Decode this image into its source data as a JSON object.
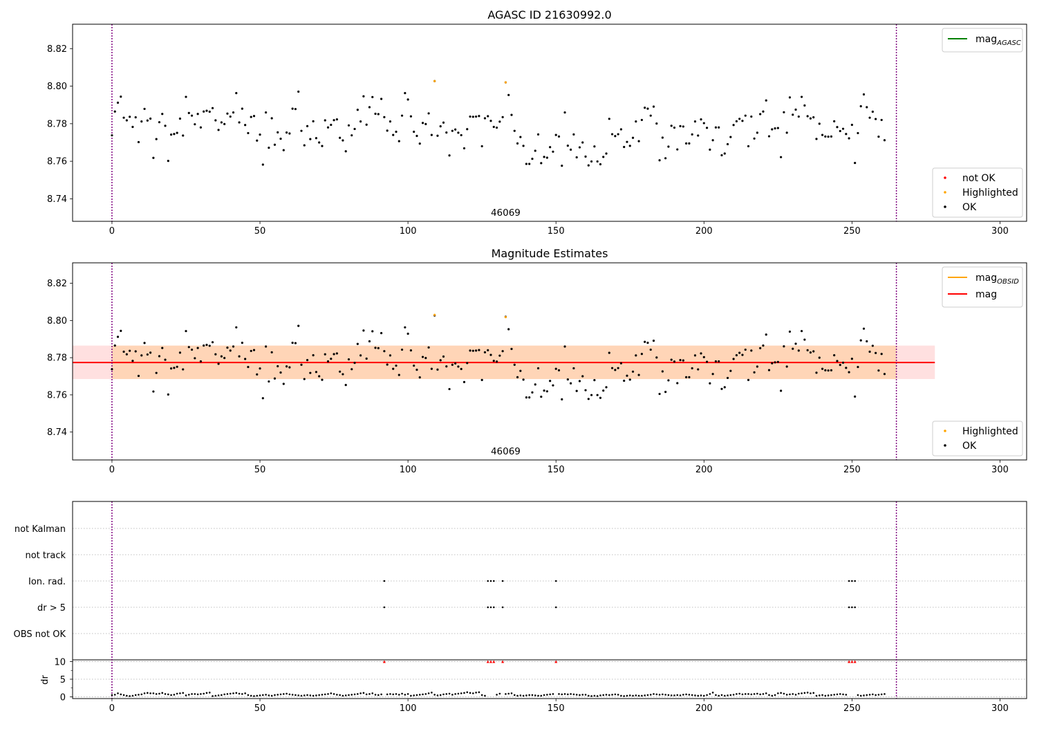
{
  "chart_data": [
    {
      "type": "scatter",
      "title": "AGASC ID 21630992.0",
      "obs_label": "46069",
      "xlim": [
        -13.3,
        309.0
      ],
      "ylim": [
        8.728,
        8.833
      ],
      "xticks": [
        0,
        50,
        100,
        150,
        200,
        250,
        300
      ],
      "yticks": [
        8.74,
        8.76,
        8.78,
        8.8,
        8.82
      ],
      "ytick_labels": [
        "8.74",
        "8.76",
        "8.78",
        "8.80",
        "8.82"
      ],
      "vlines": [
        0,
        265
      ],
      "legend_upper": [
        {
          "label": "mag",
          "sub": "AGASC",
          "kind": "line",
          "color": "#008000"
        }
      ],
      "legend_lower": [
        {
          "label": "not OK",
          "kind": "dot",
          "color": "#ff0000"
        },
        {
          "label": "Highlighted",
          "kind": "dot",
          "color": "#ffa500"
        },
        {
          "label": "OK",
          "kind": "dot",
          "color": "#000000"
        }
      ],
      "highlighted": [
        [
          109,
          8.8027
        ],
        [
          133,
          8.802
        ]
      ]
    },
    {
      "type": "scatter",
      "title": "Magnitude Estimates",
      "obs_label": "46069",
      "xlim": [
        -13.3,
        309.0
      ],
      "ylim": [
        8.725,
        8.831
      ],
      "xticks": [
        0,
        50,
        100,
        150,
        200,
        250,
        300
      ],
      "yticks": [
        8.74,
        8.76,
        8.78,
        8.8,
        8.82
      ],
      "ytick_labels": [
        "8.74",
        "8.76",
        "8.78",
        "8.80",
        "8.82"
      ],
      "vlines": [
        0,
        265
      ],
      "mag": 8.7774,
      "mag_band": [
        8.7685,
        8.7865
      ],
      "band_x": [
        -13.3,
        278
      ],
      "legend_upper": [
        {
          "label": "mag",
          "sub": "OBSID",
          "kind": "line",
          "color": "#ffa500"
        },
        {
          "label": "mag",
          "kind": "line",
          "color": "#ff0000"
        }
      ],
      "legend_lower": [
        {
          "label": "Highlighted",
          "kind": "dot",
          "color": "#ffa500"
        },
        {
          "label": "OK",
          "kind": "dot",
          "color": "#000000"
        }
      ],
      "highlighted": [
        [
          109,
          8.803
        ],
        [
          133,
          8.8018
        ]
      ]
    },
    {
      "type": "scatter",
      "title": "",
      "xlim": [
        -13.3,
        309.0
      ],
      "xticks": [
        0,
        50,
        100,
        150,
        200,
        250,
        300
      ],
      "vlines": [
        0,
        265
      ],
      "flag_rows": [
        "not Kalman",
        "not track",
        "Ion. rad.",
        "dr > 5",
        "OBS not OK"
      ],
      "flag_points": [
        92,
        127,
        128,
        129,
        132,
        150,
        249,
        250,
        251
      ],
      "dr_label": "dr",
      "dr_ylim": [
        -0.5,
        10.5
      ],
      "dr_yticks": [
        0,
        5,
        10
      ],
      "dr_cap": 10
    }
  ],
  "series_mag": [
    8.7738,
    8.7865,
    8.7912,
    8.7944,
    8.7832,
    8.7818,
    8.7837,
    8.7783,
    8.7834,
    8.7702,
    8.7812,
    8.7879,
    8.7817,
    8.7827,
    8.7618,
    8.7718,
    8.7808,
    8.7852,
    8.7789,
    8.7602,
    8.7742,
    8.7745,
    8.7751,
    8.7827,
    8.7737,
    8.7943,
    8.7857,
    8.7843,
    8.7797,
    8.7852,
    8.778,
    8.7865,
    8.7869,
    8.7864,
    8.7883,
    8.7818,
    8.7767,
    8.7807,
    8.7798,
    8.7854,
    8.7838,
    8.786,
    8.7963,
    8.7807,
    8.788,
    8.7793,
    8.775,
    8.7836,
    8.7841,
    8.771,
    8.7742,
    8.7582,
    8.786,
    8.7672,
    8.7829,
    8.7688,
    8.7754,
    8.772,
    8.7659,
    8.7753,
    8.7748,
    8.788,
    8.7878,
    8.7971,
    8.7762,
    8.7685,
    8.7787,
    8.7718,
    8.7813,
    8.7723,
    8.77,
    8.7681,
    8.7818,
    8.778,
    8.7794,
    8.7819,
    8.7823,
    8.7725,
    8.7711,
    8.7653,
    8.7791,
    8.7738,
    8.7772,
    8.7874,
    8.7812,
    8.7946,
    8.7795,
    8.7888,
    8.7942,
    8.7853,
    8.7851,
    8.7932,
    8.7835,
    8.7763,
    8.7812,
    8.774,
    8.7757,
    8.7707,
    8.7843,
    8.7963,
    8.7929,
    8.7839,
    8.7757,
    8.7735,
    8.7694,
    8.7804,
    8.7798,
    8.7855,
    8.774,
    8.8027,
    8.7736,
    8.7786,
    8.7806,
    8.7753,
    8.7631,
    8.7762,
    8.7769,
    8.7752,
    8.7739,
    8.7669,
    8.7771,
    8.7838,
    8.7837,
    8.7838,
    8.7841,
    8.768,
    8.7829,
    8.784,
    8.7815,
    8.7783,
    8.7779,
    8.7811,
    8.7835,
    8.802,
    8.7953,
    8.7847,
    8.7762,
    8.7695,
    8.7729,
    8.7682,
    8.7586,
    8.7586,
    8.7613,
    8.7656,
    8.7743,
    8.759,
    8.7623,
    8.7619,
    8.7675,
    8.7651,
    8.774,
    8.7732,
    8.7576,
    8.786,
    8.7683,
    8.7662,
    8.7743,
    8.7621,
    8.7674,
    8.77,
    8.7625,
    8.7578,
    8.7599,
    8.7679,
    8.7599,
    8.7584,
    8.7623,
    8.7641,
    8.7826,
    8.7744,
    8.7734,
    8.7744,
    8.777,
    8.7676,
    8.7703,
    8.7682,
    8.7725,
    8.7812,
    8.7707,
    8.782,
    8.7885,
    8.788,
    8.7843,
    8.7891,
    8.7801,
    8.7605,
    8.7726,
    8.7616,
    8.7678,
    8.7789,
    8.7779,
    8.7663,
    8.7787,
    8.7785,
    8.7695,
    8.7695,
    8.7743,
    8.7812,
    8.7737,
    8.7823,
    8.7803,
    8.7778,
    8.7662,
    8.7712,
    8.778,
    8.778,
    8.7632,
    8.7641,
    8.7691,
    8.7729,
    8.7793,
    8.7813,
    8.7826,
    8.7815,
    8.7843,
    8.768,
    8.7838,
    8.7721,
    8.7752,
    8.7851,
    8.7865,
    8.7924,
    8.7733,
    8.777,
    8.7775,
    8.7777,
    8.7622,
    8.7861,
    8.7752,
    8.794,
    8.7848,
    8.7875,
    8.7838,
    8.7943,
    8.7897,
    8.784,
    8.7828,
    8.7834,
    8.7719,
    8.78,
    8.774,
    8.7732,
    8.7731,
    8.7732,
    8.7813,
    8.7782,
    8.7761,
    8.7773,
    8.7745,
    8.7722,
    8.7794,
    8.7591,
    8.775,
    8.7893,
    8.7956,
    8.7888,
    8.7832,
    8.7864,
    8.7825,
    8.7731,
    8.782,
    8.7712
  ],
  "series_dr": [
    0.5,
    0.6,
    1.0,
    0.7,
    0.5,
    0.3,
    0.2,
    0.3,
    0.5,
    0.6,
    0.7,
    1.0,
    1.1,
    1.0,
    1.0,
    0.8,
    0.9,
    1.1,
    0.8,
    0.7,
    0.5,
    0.6,
    0.9,
    1.0,
    1.1,
    0.4,
    0.6,
    0.8,
    0.8,
    0.7,
    0.8,
    0.9,
    1.1,
    1.2,
    0.2,
    0.3,
    0.4,
    0.5,
    0.7,
    0.8,
    0.9,
    1.0,
    1.1,
    0.9,
    0.8,
    1.0,
    0.5,
    0.3,
    0.2,
    0.3,
    0.4,
    0.5,
    0.6,
    0.4,
    0.3,
    0.5,
    0.6,
    0.7,
    0.8,
    0.9,
    0.7,
    0.6,
    0.5,
    0.4,
    0.3,
    0.4,
    0.5,
    0.4,
    0.3,
    0.4,
    0.5,
    0.6,
    0.7,
    0.8,
    1.0,
    0.8,
    0.6,
    0.5,
    0.3,
    0.4,
    0.5,
    0.6,
    0.7,
    0.8,
    1.0,
    1.1,
    0.7,
    0.8,
    1.0,
    0.6,
    0.5,
    0.7,
    0.4,
    0.7,
    0.8,
    0.7,
    0.8,
    0.6,
    0.9,
    0.6,
    0.8,
    0.3,
    0.4,
    0.5,
    0.6,
    0.7,
    0.8,
    1.0,
    1.2,
    0.6,
    0.4,
    0.5,
    0.7,
    0.8,
    0.9,
    0.6,
    0.8,
    0.9,
    1.0,
    1.1,
    1.3,
    1.1,
    1.0,
    1.2,
    1.3,
    0.5,
    0.3,
    1.0,
    1.2,
    0.9,
    0.6,
    0.9,
    1.0,
    0.8,
    0.9,
    1.0,
    0.5,
    0.3,
    0.4,
    0.3,
    0.4,
    0.5,
    0.5,
    0.4,
    0.3,
    0.3,
    0.5,
    0.6,
    0.7,
    0.8,
    0.3,
    0.8,
    0.7,
    0.8,
    0.7,
    0.8,
    0.7,
    0.6,
    0.5,
    0.6,
    0.6,
    0.3,
    0.2,
    0.3,
    0.2,
    0.4,
    0.5,
    0.6,
    0.5,
    0.6,
    0.7,
    0.6,
    0.3,
    0.2,
    0.3,
    0.4,
    0.3,
    0.4,
    0.3,
    0.3,
    0.4,
    0.5,
    0.6,
    0.8,
    0.7,
    0.6,
    0.7,
    0.6,
    0.5,
    0.4,
    0.4,
    0.5,
    0.4,
    0.6,
    0.7,
    0.6,
    0.5,
    0.4,
    0.3,
    0.4,
    0.3,
    0.5,
    0.8,
    1.2,
    0.5,
    0.3,
    0.5,
    0.3,
    0.4,
    0.5,
    0.6,
    0.8,
    0.9,
    0.7,
    0.8,
    0.8,
    0.7,
    0.8,
    0.9,
    0.7,
    0.8,
    1.0,
    0.5,
    0.3,
    0.5,
    1.0,
    1.1,
    0.9,
    0.6,
    0.7,
    0.8,
    0.6,
    0.9,
    1.0,
    1.1,
    1.2,
    1.0,
    1.1,
    0.3,
    0.4,
    0.5,
    0.3,
    0.4,
    0.5,
    0.6,
    0.7,
    0.8,
    0.7,
    0.6,
    0.5,
    0.3,
    0.4,
    0.5,
    0.3,
    0.4,
    0.5,
    0.6,
    0.7,
    0.5,
    0.6,
    0.7,
    0.8
  ]
}
